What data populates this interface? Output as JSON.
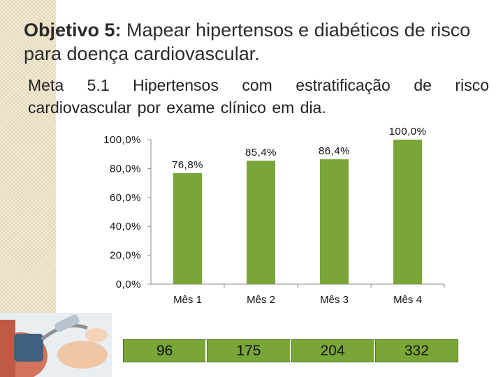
{
  "slide": {
    "title_lead": "Objetivo 5:",
    "title_rest": " Mapear hipertensos e  diabéticos de risco para doença cardiovascular.",
    "subtitle": "Meta 5.1 Hipertensos com estratificação de risco cardiovascular por exame clínico em dia."
  },
  "chart_data": {
    "type": "bar",
    "categories": [
      "Mês 1",
      "Mês 2",
      "Mês 3",
      "Mês 4"
    ],
    "values": [
      76.8,
      85.4,
      86.4,
      100.0
    ],
    "value_labels": [
      "76,8%",
      "85,4%",
      "86,4%",
      "100,0%"
    ],
    "ytick_labels": [
      "0,0%",
      "20,0%",
      "40,0%",
      "60,0%",
      "80,0%",
      "100,0%"
    ],
    "ylim": [
      0,
      100
    ],
    "bar_color": "#7aa537"
  },
  "counts": [
    "96",
    "175",
    "204",
    "332"
  ]
}
